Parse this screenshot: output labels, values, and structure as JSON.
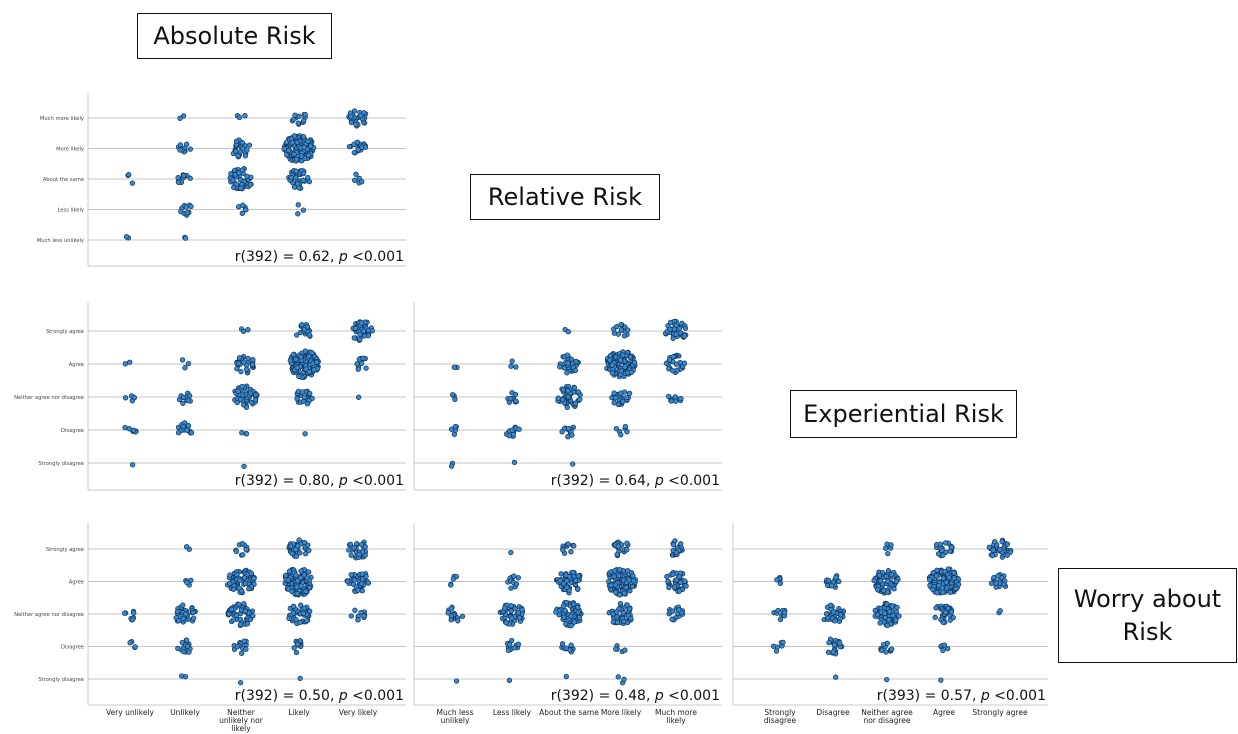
{
  "labels": {
    "absolute": "Absolute Risk",
    "relative": "Relative Risk",
    "experiential": "Experiential Risk",
    "worry_line1": "Worry about",
    "worry_line2": "Risk"
  },
  "scales": {
    "absolute": [
      "Very unlikely",
      "Unlikely",
      "Neither unlikely nor likely",
      "Likely",
      "Very likely"
    ],
    "relative": [
      "Much less unlikely",
      "Less likely",
      "About the same",
      "More likely",
      "Much more likely"
    ],
    "experiential": [
      "Strongly disagree",
      "Disagree",
      "Neither agree nor disagree",
      "Agree",
      "Strongly agree"
    ],
    "relative_y": [
      "Much less unlikely",
      "Less likely",
      "About the same",
      "More likely",
      "Much more likely"
    ],
    "agree_y": [
      "Strongly disagree",
      "Disagree",
      "Neither agree nor disagree",
      "Agree",
      "Strongly agree"
    ]
  },
  "colors": {
    "dot_fill": "#3a88cc",
    "dot_stroke": "#0f2f55",
    "grid": "#c4c4c4"
  },
  "chart_data": [
    {
      "type": "scatter",
      "id": "abs-vs-rel",
      "x_variable": "Absolute Risk",
      "y_variable": "Relative Risk",
      "stat": {
        "prefix": "r(392) = 0.62, ",
        "p": "p",
        "suffix": " <0.001"
      },
      "counts": [
        [
          2,
          0,
          3,
          0,
          0
        ],
        [
          2,
          10,
          12,
          10,
          2
        ],
        [
          0,
          5,
          45,
          25,
          3
        ],
        [
          0,
          3,
          35,
          150,
          12
        ],
        [
          0,
          0,
          5,
          20,
          25
        ]
      ]
    },
    {
      "type": "scatter",
      "id": "abs-vs-exp",
      "x_variable": "Absolute Risk",
      "y_variable": "Experiential Risk",
      "stat": {
        "prefix": "r(392) = 0.80, ",
        "p": "p",
        "suffix": " <0.001"
      },
      "counts": [
        [
          1,
          6,
          4,
          2,
          0
        ],
        [
          0,
          16,
          12,
          3,
          0
        ],
        [
          1,
          3,
          50,
          28,
          3
        ],
        [
          0,
          1,
          20,
          150,
          20
        ],
        [
          0,
          0,
          1,
          10,
          40
        ]
      ]
    },
    {
      "type": "scatter",
      "id": "rel-vs-exp",
      "x_variable": "Relative Risk",
      "y_variable": "Experiential Risk",
      "stat": {
        "prefix": "r(392) = 0.64, ",
        "p": "p",
        "suffix": " <0.001"
      },
      "counts": [
        [
          2,
          5,
          3,
          2,
          0
        ],
        [
          1,
          12,
          10,
          3,
          0
        ],
        [
          1,
          12,
          45,
          30,
          2
        ],
        [
          0,
          6,
          25,
          120,
          12
        ],
        [
          0,
          0,
          10,
          25,
          35
        ]
      ]
    },
    {
      "type": "scatter",
      "id": "abs-vs-worry",
      "x_variable": "Absolute Risk",
      "y_variable": "Worry about Risk",
      "stat": {
        "prefix": "r(392) = 0.50, ",
        "p": "p",
        "suffix": " <0.001"
      },
      "counts": [
        [
          0,
          4,
          8,
          0,
          0
        ],
        [
          2,
          15,
          35,
          5,
          2
        ],
        [
          1,
          12,
          55,
          70,
          10
        ],
        [
          1,
          10,
          40,
          110,
          30
        ],
        [
          0,
          0,
          10,
          40,
          30
        ]
      ]
    },
    {
      "type": "scatter",
      "id": "rel-vs-worry",
      "x_variable": "Relative Risk",
      "y_variable": "Worry about Risk",
      "stat": {
        "prefix": "r(392) = 0.48, ",
        "p": "p",
        "suffix": " <0.001"
      },
      "counts": [
        [
          1,
          0,
          15,
          5,
          0
        ],
        [
          1,
          10,
          45,
          12,
          1
        ],
        [
          1,
          10,
          60,
          55,
          10
        ],
        [
          3,
          5,
          45,
          100,
          20
        ],
        [
          0,
          0,
          15,
          40,
          20
        ]
      ]
    },
    {
      "type": "scatter",
      "id": "exp-vs-worry",
      "x_variable": "Experiential Risk",
      "y_variable": "Worry about Risk",
      "stat": {
        "prefix": "r(393) = 0.57, ",
        "p": "p",
        "suffix": " <0.001"
      },
      "counts": [
        [
          0,
          6,
          10,
          5,
          0
        ],
        [
          1,
          20,
          35,
          15,
          0
        ],
        [
          1,
          10,
          55,
          60,
          5
        ],
        [
          1,
          5,
          35,
          120,
          20
        ],
        [
          0,
          0,
          2,
          20,
          35
        ]
      ]
    }
  ]
}
